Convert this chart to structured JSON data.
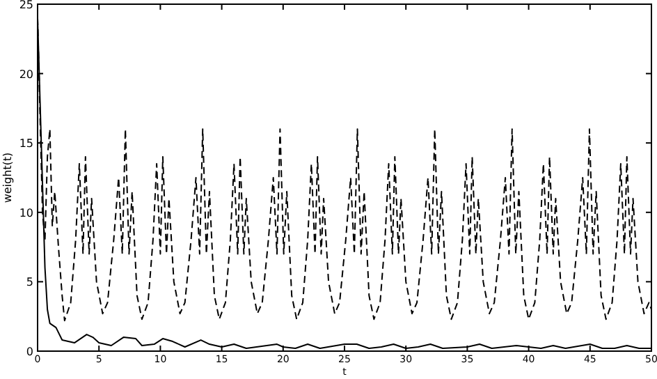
{
  "chart_data": {
    "type": "line",
    "xlabel": "t",
    "ylabel": "weight(t)",
    "xlim": [
      0,
      50
    ],
    "ylim": [
      0,
      25
    ],
    "xticks": [
      0,
      5,
      10,
      15,
      20,
      25,
      30,
      35,
      40,
      45,
      50
    ],
    "yticks": [
      0,
      5,
      10,
      15,
      20,
      25
    ],
    "grid": false,
    "series": [
      {
        "color": "#000000",
        "line_style": "dashed",
        "x": [
          0,
          0.2,
          0.4,
          0.6,
          0.8,
          1.0,
          1.2,
          1.4,
          1.7,
          2.0,
          2.2,
          2.7,
          3.1,
          3.4,
          3.7,
          3.9,
          4.2,
          4.4,
          4.8,
          5.3,
          5.7,
          6.2,
          6.6,
          6.9,
          7.15,
          7.45,
          7.7,
          8.1,
          8.5,
          9.0,
          9.4,
          9.7,
          10.0,
          10.2,
          10.5,
          10.7,
          11.1,
          11.6,
          12.0,
          12.5,
          12.9,
          13.2,
          13.45,
          13.75,
          14.0,
          14.4,
          14.8,
          15.3,
          15.7,
          16.0,
          16.3,
          16.5,
          16.8,
          17.0,
          17.4,
          17.9,
          18.3,
          18.8,
          19.2,
          19.5,
          19.75,
          20.05,
          20.3,
          20.7,
          21.1,
          21.6,
          22.0,
          22.3,
          22.6,
          22.8,
          23.1,
          23.3,
          23.7,
          24.2,
          24.6,
          25.1,
          25.5,
          25.8,
          26.05,
          26.35,
          26.6,
          27.0,
          27.4,
          27.9,
          28.3,
          28.6,
          28.9,
          29.1,
          29.4,
          29.6,
          30.0,
          30.5,
          30.9,
          31.4,
          31.8,
          32.1,
          32.35,
          32.65,
          32.9,
          33.3,
          33.7,
          34.2,
          34.6,
          34.9,
          35.2,
          35.4,
          35.7,
          35.9,
          36.3,
          36.8,
          37.2,
          37.7,
          38.1,
          38.4,
          38.65,
          38.95,
          39.2,
          39.6,
          40.0,
          40.5,
          40.9,
          41.2,
          41.5,
          41.7,
          42.0,
          42.2,
          42.6,
          43.1,
          43.5,
          44.0,
          44.4,
          44.7,
          44.95,
          45.25,
          45.5,
          45.9,
          46.3,
          46.8,
          47.2,
          47.5,
          47.8,
          48.0,
          48.3,
          48.5,
          48.9,
          49.4,
          49.8,
          50
        ],
        "values": [
          24,
          17,
          10,
          8,
          14,
          16,
          9,
          11.5,
          7.5,
          4,
          2.2,
          3.5,
          8,
          13.5,
          7,
          14,
          7,
          11,
          5,
          2.7,
          3.5,
          8,
          12.5,
          7,
          16,
          7,
          11.5,
          4,
          2.3,
          3.5,
          8,
          13.5,
          7,
          14,
          7,
          11,
          5,
          2.7,
          3.5,
          8,
          12.5,
          7,
          16,
          7,
          11.5,
          4,
          2.3,
          3.5,
          8,
          13.5,
          7,
          14,
          7,
          11,
          5,
          2.7,
          3.5,
          8,
          12.5,
          7,
          16,
          7,
          11.5,
          4,
          2.3,
          3.5,
          8,
          13.5,
          7,
          14,
          7,
          11,
          5,
          2.7,
          3.5,
          8,
          12.5,
          7,
          16,
          7,
          11.5,
          4,
          2.3,
          3.5,
          8,
          13.5,
          7,
          14,
          7,
          11,
          5,
          2.7,
          3.5,
          8,
          12.5,
          7,
          16,
          7,
          11.5,
          4,
          2.3,
          3.5,
          8,
          13.5,
          7,
          14,
          7,
          11,
          5,
          2.7,
          3.5,
          8,
          12.5,
          7,
          16,
          7,
          11.5,
          4,
          2.3,
          3.5,
          8,
          13.5,
          7,
          14,
          7,
          11,
          5,
          2.7,
          3.5,
          8,
          12.5,
          7,
          16,
          7,
          11.5,
          4,
          2.3,
          3.5,
          8,
          13.5,
          7,
          14,
          7,
          11,
          5,
          2.7,
          3.5,
          3
        ]
      },
      {
        "color": "#000000",
        "line_style": "solid",
        "x": [
          0,
          0.2,
          0.4,
          0.6,
          0.8,
          1.0,
          1.5,
          2,
          3,
          3.5,
          4,
          4.5,
          5,
          6,
          7,
          8,
          8.5,
          9.5,
          10.2,
          11,
          12,
          13.3,
          14,
          15,
          16,
          17,
          19.5,
          20,
          21,
          22,
          23,
          25,
          26,
          27,
          28,
          29,
          30,
          31,
          32,
          33,
          35,
          36,
          37,
          39,
          40,
          41,
          42,
          43,
          45,
          46,
          47,
          48,
          49,
          50
        ],
        "values": [
          24,
          18,
          12,
          6,
          3,
          2,
          1.7,
          0.8,
          0.6,
          0.9,
          1.2,
          1.0,
          0.6,
          0.4,
          1.0,
          0.9,
          0.4,
          0.5,
          0.9,
          0.7,
          0.3,
          0.8,
          0.5,
          0.3,
          0.5,
          0.2,
          0.5,
          0.3,
          0.2,
          0.5,
          0.2,
          0.5,
          0.5,
          0.2,
          0.3,
          0.5,
          0.2,
          0.3,
          0.5,
          0.2,
          0.3,
          0.5,
          0.2,
          0.4,
          0.3,
          0.2,
          0.4,
          0.2,
          0.5,
          0.2,
          0.2,
          0.4,
          0.2,
          0.2
        ]
      }
    ]
  }
}
